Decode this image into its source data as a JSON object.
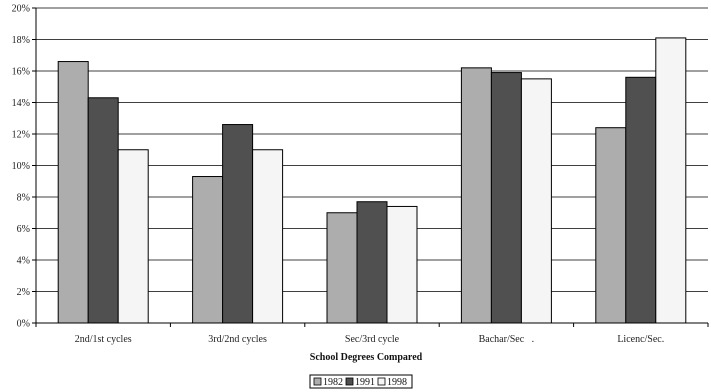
{
  "chart_data": {
    "type": "bar",
    "categories": [
      "2nd/1st cycles",
      "3rd/2nd cycles",
      "Sec/3rd cycle",
      "Bachar/Sec   .",
      "Licenc/Sec."
    ],
    "series": [
      {
        "name": "1982",
        "color": "#adadad",
        "values": [
          16.6,
          9.3,
          7.0,
          16.2,
          12.4
        ]
      },
      {
        "name": "1991",
        "color": "#505050",
        "values": [
          14.3,
          12.6,
          7.7,
          15.9,
          15.6
        ]
      },
      {
        "name": "1998",
        "color": "#f5f5f5",
        "values": [
          11.0,
          11.0,
          7.4,
          15.5,
          18.1
        ]
      }
    ],
    "yticks": [
      "0%",
      "2%",
      "4%",
      "6%",
      "8%",
      "10%",
      "12%",
      "14%",
      "16%",
      "18%",
      "20%"
    ],
    "ylim": [
      0,
      20
    ],
    "xlabel": "School Degrees Compared",
    "ylabel": "",
    "grid": true,
    "legend": "bottom-center"
  }
}
